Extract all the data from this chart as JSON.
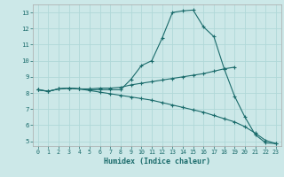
{
  "background_color": "#cce8e8",
  "grid_color": "#b0d8d8",
  "line_color": "#1a6b6b",
  "xlabel": "Humidex (Indice chaleur)",
  "xlim": [
    -0.5,
    23.5
  ],
  "ylim": [
    4.7,
    13.5
  ],
  "yticks": [
    5,
    6,
    7,
    8,
    9,
    10,
    11,
    12,
    13
  ],
  "xticks": [
    0,
    1,
    2,
    3,
    4,
    5,
    6,
    7,
    8,
    9,
    10,
    11,
    12,
    13,
    14,
    15,
    16,
    17,
    18,
    19,
    20,
    21,
    22,
    23
  ],
  "series1_x": [
    0,
    1,
    2,
    3,
    4,
    5,
    6,
    7,
    8,
    9,
    10,
    11,
    12,
    13,
    14,
    15,
    16,
    17,
    18,
    19,
    20,
    21,
    22,
    23
  ],
  "series1_y": [
    8.2,
    8.1,
    8.25,
    8.3,
    8.25,
    8.2,
    8.2,
    8.2,
    8.2,
    8.85,
    9.7,
    10.0,
    11.4,
    13.0,
    13.1,
    13.15,
    12.1,
    11.5,
    9.5,
    7.8,
    6.5,
    5.4,
    4.9,
    4.85
  ],
  "series2_x": [
    0,
    1,
    2,
    3,
    4,
    5,
    6,
    7,
    8,
    9,
    10,
    11,
    12,
    13,
    14,
    15,
    16,
    17,
    18,
    19
  ],
  "series2_y": [
    8.2,
    8.1,
    8.25,
    8.3,
    8.25,
    8.25,
    8.3,
    8.3,
    8.35,
    8.5,
    8.6,
    8.7,
    8.8,
    8.9,
    9.0,
    9.1,
    9.2,
    9.35,
    9.5,
    9.6
  ],
  "series3_x": [
    0,
    1,
    2,
    3,
    4,
    5,
    6,
    7,
    8,
    9,
    10,
    11,
    12,
    13,
    14,
    15,
    16,
    17,
    18,
    19,
    20,
    21,
    22,
    23
  ],
  "series3_y": [
    8.2,
    8.1,
    8.25,
    8.3,
    8.25,
    8.15,
    8.05,
    7.95,
    7.85,
    7.75,
    7.65,
    7.55,
    7.4,
    7.25,
    7.1,
    6.95,
    6.8,
    6.6,
    6.4,
    6.2,
    5.9,
    5.5,
    5.05,
    4.85
  ]
}
